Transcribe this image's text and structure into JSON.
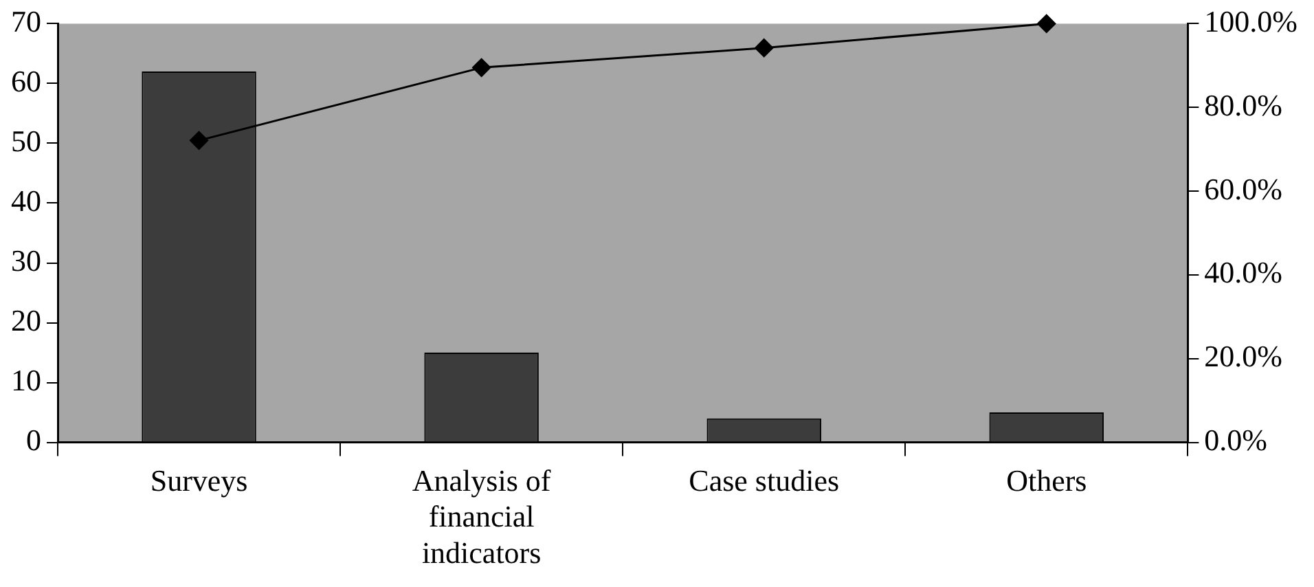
{
  "chart_data": {
    "type": "bar",
    "categories": [
      "Surveys",
      "Analysis of financial indicators",
      "Case studies",
      "Others"
    ],
    "series": [
      {
        "color": "#3c3c3c",
        "values": [
          62,
          15,
          4,
          5
        ]
      },
      {
        "type": "line",
        "axis": "y2",
        "color": "#000000",
        "marker": "diamond",
        "values": [
          72.1,
          89.5,
          94.2,
          100
        ]
      }
    ],
    "ylim": [
      0,
      70
    ],
    "yticks": [
      0,
      10,
      20,
      30,
      40,
      50,
      60,
      70
    ],
    "y2lim": [
      0,
      100
    ],
    "y2ticks": [
      {
        "value": 0,
        "label": "0.0%"
      },
      {
        "value": 20,
        "label": "20.0%"
      },
      {
        "value": 40,
        "label": "40.0%"
      },
      {
        "value": 60,
        "label": "60.0%"
      },
      {
        "value": 80,
        "label": "80.0%"
      },
      {
        "value": 100,
        "label": "100.0%"
      }
    ],
    "grid": false,
    "legend": false
  }
}
